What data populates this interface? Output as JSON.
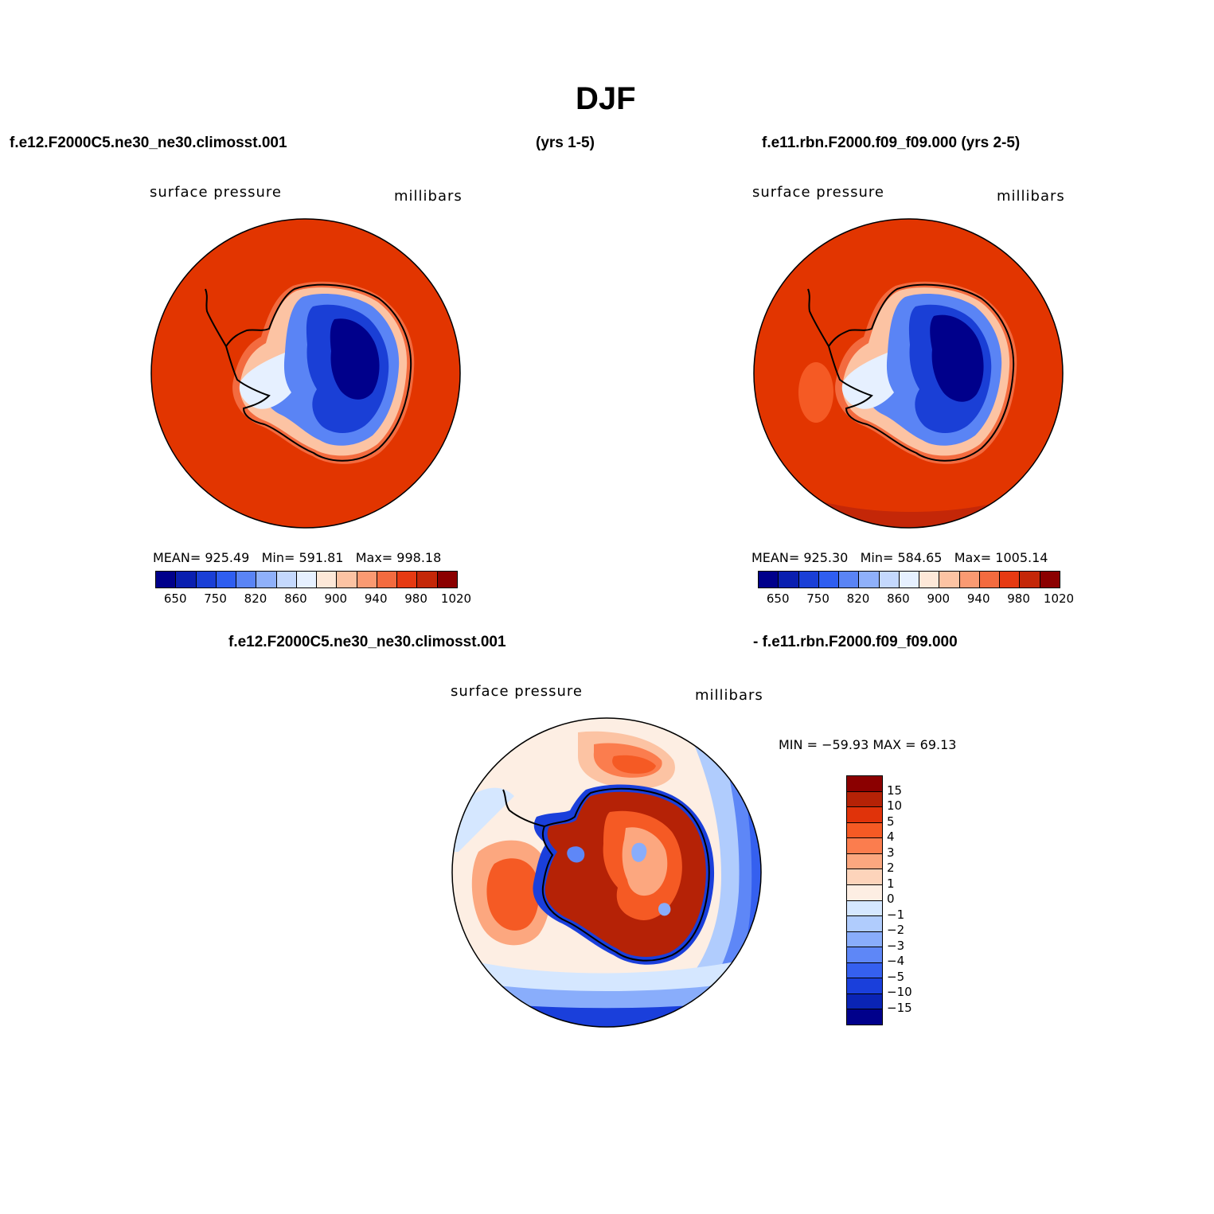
{
  "title": "DJF",
  "top_left_case": "f.e12.F2000C5.ne30_ne30.climosst.001",
  "top_left_years": "(yrs 1-5)",
  "top_right_case": "f.e11.rbn.F2000.f09_f09.000 (yrs 2-5)",
  "bottom_case_a": "f.e12.F2000C5.ne30_ne30.climosst.001",
  "bottom_case_b": "- f.e11.rbn.F2000.f09_f09.000",
  "panels": [
    {
      "variable": "surface pressure",
      "units": "millibars",
      "stats": {
        "mean_label": "MEAN=",
        "mean": "925.49",
        "min_label": "Min=",
        "min": "591.81",
        "max_label": "Max=",
        "max": "998.18"
      }
    },
    {
      "variable": "surface pressure",
      "units": "millibars",
      "stats": {
        "mean_label": "MEAN=",
        "mean": "925.30",
        "min_label": "Min=",
        "min": "584.65",
        "max_label": "Max=",
        "max": "1005.14"
      }
    },
    {
      "variable": "surface pressure",
      "units": "millibars",
      "minmax": "MIN = −59.93  MAX =   69.13"
    }
  ],
  "abs_colorbar": {
    "colors": [
      "#00008b",
      "#0a1fb0",
      "#1a3fd6",
      "#2f5ef0",
      "#5a84f5",
      "#8fb0fa",
      "#c4d8fd",
      "#e6f0ff",
      "#fde8d8",
      "#fcc3a3",
      "#fa9a72",
      "#f36b3f",
      "#e63a12",
      "#c42708",
      "#8b0000"
    ],
    "tick_labels": [
      "650",
      "750",
      "820",
      "860",
      "900",
      "940",
      "980",
      "1020"
    ]
  },
  "diff_colorbar": {
    "colors": [
      "#8b0000",
      "#b52206",
      "#e0330a",
      "#f55a24",
      "#fb7d4e",
      "#fca77f",
      "#fdd4bb",
      "#fdeee3",
      "#d5e7ff",
      "#b0ccfd",
      "#89adfb",
      "#5e87f7",
      "#3560ef",
      "#1a3fdb",
      "#0a24b5",
      "#00008b"
    ],
    "tick_labels": [
      "15",
      "10",
      "5",
      "4",
      "3",
      "2",
      "1",
      "0",
      "−1",
      "−2",
      "−3",
      "−4",
      "−5",
      "−10",
      "−15"
    ]
  },
  "colors": {
    "ocean_abs": "#e23500",
    "land_abs_deep": "#00008b",
    "background": "#ffffff"
  }
}
